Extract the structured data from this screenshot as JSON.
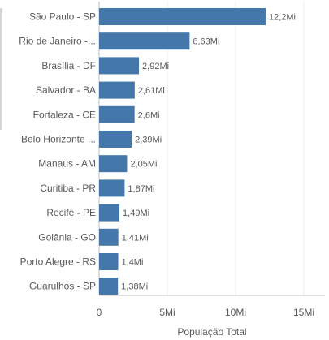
{
  "chart_data": {
    "type": "bar",
    "orientation": "horizontal",
    "categories": [
      "São Paulo - SP",
      "Rio de Janeiro -...",
      "Brasília - DF",
      "Salvador - BA",
      "Fortaleza - CE",
      "Belo Horizonte ...",
      "Manaus - AM",
      "Curitiba - PR",
      "Recife - PE",
      "Goiânia - GO",
      "Porto Alegre - RS",
      "Guarulhos - SP"
    ],
    "values": [
      12.2,
      6.63,
      2.92,
      2.61,
      2.6,
      2.39,
      2.05,
      1.87,
      1.49,
      1.41,
      1.4,
      1.38
    ],
    "value_labels": [
      "12,2Mi",
      "6,63Mi",
      "2,92Mi",
      "2,61Mi",
      "2,6Mi",
      "2,39Mi",
      "2,05Mi",
      "1,87Mi",
      "1,49Mi",
      "1,41Mi",
      "1,4Mi",
      "1,38Mi"
    ],
    "x_ticks": [
      0,
      5,
      10,
      15
    ],
    "x_tick_labels": [
      "0",
      "5Mi",
      "10Mi",
      "15Mi"
    ],
    "xlim": [
      0,
      15
    ],
    "xlabel": "População Total",
    "ylabel": "",
    "title": "",
    "bar_color": "#4477aa",
    "grid": true
  }
}
